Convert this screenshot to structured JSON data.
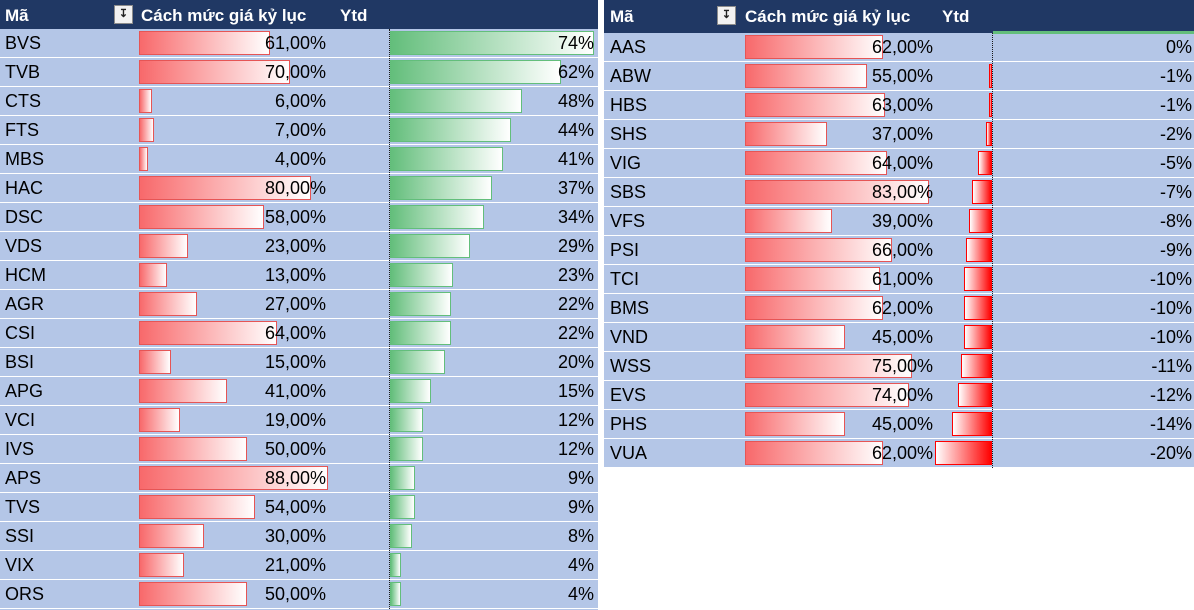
{
  "left": {
    "headers": {
      "code": "Mã",
      "percent": "Cách mức giá kỷ lục",
      "ytd": "Ytd"
    },
    "rows": [
      {
        "code": "BVS",
        "pct": "61,00%",
        "pct_val": 61,
        "ytd": "74%",
        "ytd_val": 74
      },
      {
        "code": "TVB",
        "pct": "70,00%",
        "pct_val": 70,
        "ytd": "62%",
        "ytd_val": 62
      },
      {
        "code": "CTS",
        "pct": "6,00%",
        "pct_val": 6,
        "ytd": "48%",
        "ytd_val": 48
      },
      {
        "code": "FTS",
        "pct": "7,00%",
        "pct_val": 7,
        "ytd": "44%",
        "ytd_val": 44
      },
      {
        "code": "MBS",
        "pct": "4,00%",
        "pct_val": 4,
        "ytd": "41%",
        "ytd_val": 41
      },
      {
        "code": "HAC",
        "pct": "80,00%",
        "pct_val": 80,
        "ytd": "37%",
        "ytd_val": 37
      },
      {
        "code": "DSC",
        "pct": "58,00%",
        "pct_val": 58,
        "ytd": "34%",
        "ytd_val": 34
      },
      {
        "code": "VDS",
        "pct": "23,00%",
        "pct_val": 23,
        "ytd": "29%",
        "ytd_val": 29
      },
      {
        "code": "HCM",
        "pct": "13,00%",
        "pct_val": 13,
        "ytd": "23%",
        "ytd_val": 23
      },
      {
        "code": "AGR",
        "pct": "27,00%",
        "pct_val": 27,
        "ytd": "22%",
        "ytd_val": 22
      },
      {
        "code": "CSI",
        "pct": "64,00%",
        "pct_val": 64,
        "ytd": "22%",
        "ytd_val": 22
      },
      {
        "code": "BSI",
        "pct": "15,00%",
        "pct_val": 15,
        "ytd": "20%",
        "ytd_val": 20
      },
      {
        "code": "APG",
        "pct": "41,00%",
        "pct_val": 41,
        "ytd": "15%",
        "ytd_val": 15
      },
      {
        "code": "VCI",
        "pct": "19,00%",
        "pct_val": 19,
        "ytd": "12%",
        "ytd_val": 12
      },
      {
        "code": "IVS",
        "pct": "50,00%",
        "pct_val": 50,
        "ytd": "12%",
        "ytd_val": 12
      },
      {
        "code": "APS",
        "pct": "88,00%",
        "pct_val": 88,
        "ytd": "9%",
        "ytd_val": 9
      },
      {
        "code": "TVS",
        "pct": "54,00%",
        "pct_val": 54,
        "ytd": "9%",
        "ytd_val": 9
      },
      {
        "code": "SSI",
        "pct": "30,00%",
        "pct_val": 30,
        "ytd": "8%",
        "ytd_val": 8
      },
      {
        "code": "VIX",
        "pct": "21,00%",
        "pct_val": 21,
        "ytd": "4%",
        "ytd_val": 4
      },
      {
        "code": "ORS",
        "pct": "50,00%",
        "pct_val": 50,
        "ytd": "4%",
        "ytd_val": 4
      }
    ]
  },
  "right": {
    "headers": {
      "code": "Mã",
      "percent": "Cách mức giá kỷ lục",
      "ytd": "Ytd"
    },
    "rows": [
      {
        "code": "AAS",
        "pct": "62,00%",
        "pct_val": 62,
        "ytd": "0%",
        "ytd_val": 0
      },
      {
        "code": "ABW",
        "pct": "55,00%",
        "pct_val": 55,
        "ytd": "-1%",
        "ytd_val": -1
      },
      {
        "code": "HBS",
        "pct": "63,00%",
        "pct_val": 63,
        "ytd": "-1%",
        "ytd_val": -1
      },
      {
        "code": "SHS",
        "pct": "37,00%",
        "pct_val": 37,
        "ytd": "-2%",
        "ytd_val": -2
      },
      {
        "code": "VIG",
        "pct": "64,00%",
        "pct_val": 64,
        "ytd": "-5%",
        "ytd_val": -5
      },
      {
        "code": "SBS",
        "pct": "83,00%",
        "pct_val": 83,
        "ytd": "-7%",
        "ytd_val": -7
      },
      {
        "code": "VFS",
        "pct": "39,00%",
        "pct_val": 39,
        "ytd": "-8%",
        "ytd_val": -8
      },
      {
        "code": "PSI",
        "pct": "66,00%",
        "pct_val": 66,
        "ytd": "-9%",
        "ytd_val": -9
      },
      {
        "code": "TCI",
        "pct": "61,00%",
        "pct_val": 61,
        "ytd": "-10%",
        "ytd_val": -10
      },
      {
        "code": "BMS",
        "pct": "62,00%",
        "pct_val": 62,
        "ytd": "-10%",
        "ytd_val": -10
      },
      {
        "code": "VND",
        "pct": "45,00%",
        "pct_val": 45,
        "ytd": "-10%",
        "ytd_val": -10
      },
      {
        "code": "WSS",
        "pct": "75,00%",
        "pct_val": 75,
        "ytd": "-11%",
        "ytd_val": -11
      },
      {
        "code": "EVS",
        "pct": "74,00%",
        "pct_val": 74,
        "ytd": "-12%",
        "ytd_val": -12
      },
      {
        "code": "PHS",
        "pct": "45,00%",
        "pct_val": 45,
        "ytd": "-14%",
        "ytd_val": -14
      },
      {
        "code": "VUA",
        "pct": "62,00%",
        "pct_val": 62,
        "ytd": "-20%",
        "ytd_val": -20
      }
    ]
  },
  "colors": {
    "header_bg": "#203864",
    "row_bg": "#b4c6e7",
    "percent_bar": "#f8696b",
    "ytd_positive": "#63be7b",
    "ytd_negative": "#ff0000"
  },
  "icons": {
    "filter": "sort-filter-icon"
  }
}
